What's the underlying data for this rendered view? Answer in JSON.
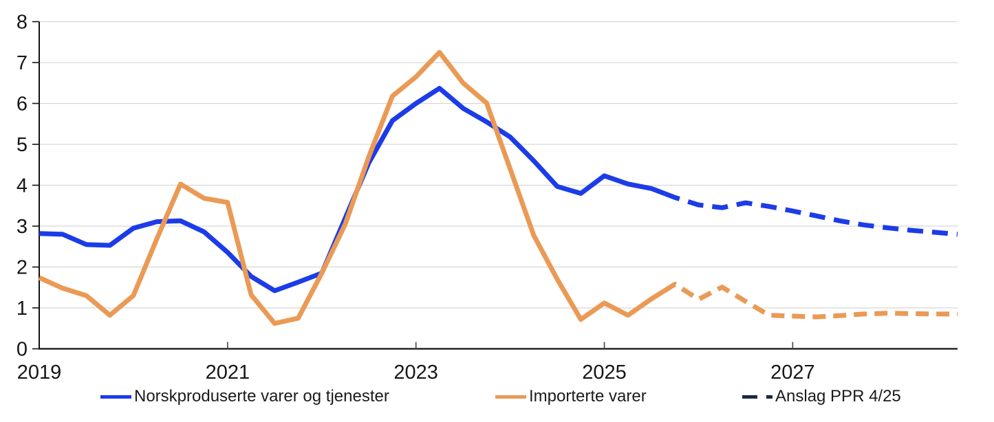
{
  "figure": {
    "background": "#ffffff",
    "title": ""
  },
  "chart_data": {
    "type": "line",
    "title": "",
    "frequency": "quarterly",
    "x_range": [
      "2019 Q1",
      "2028 Q4"
    ],
    "ylim": [
      0,
      8
    ],
    "grid": "horizontal",
    "y_tick_labels": [
      "0",
      "1",
      "2",
      "3",
      "4",
      "5",
      "6",
      "7",
      "8"
    ],
    "x_axis_labels": [
      "2019",
      "2021",
      "2023",
      "2025",
      "2027"
    ],
    "x_label_years": [
      2019,
      2021,
      2023,
      2025,
      2027
    ],
    "x_tick_years": [
      2021,
      2023,
      2025,
      2027
    ],
    "forecast_start": "2025 Q4",
    "last_actual_index": 26,
    "quarters": [
      "2019 Q1",
      "2019 Q2",
      "2019 Q3",
      "2019 Q4",
      "2020 Q1",
      "2020 Q2",
      "2020 Q3",
      "2020 Q4",
      "2021 Q1",
      "2021 Q2",
      "2021 Q3",
      "2021 Q4",
      "2022 Q1",
      "2022 Q2",
      "2022 Q3",
      "2022 Q4",
      "2023 Q1",
      "2023 Q2",
      "2023 Q3",
      "2023 Q4",
      "2024 Q1",
      "2024 Q2",
      "2024 Q3",
      "2024 Q4",
      "2025 Q1",
      "2025 Q2",
      "2025 Q3",
      "2025 Q4",
      "2026 Q1",
      "2026 Q2",
      "2026 Q3",
      "2026 Q4",
      "2027 Q1",
      "2027 Q2",
      "2027 Q3",
      "2027 Q4",
      "2028 Q1",
      "2028 Q2",
      "2028 Q3",
      "2028 Q4"
    ],
    "series": [
      {
        "name": "Norskproduserte varer og tjenester",
        "color": "#1c3ce8",
        "style": "solid, dashed forecast from 2025 Q4",
        "dash": "23 13",
        "values": [
          2.82,
          2.8,
          2.55,
          2.53,
          2.95,
          3.11,
          3.13,
          2.86,
          2.36,
          1.77,
          1.42,
          1.63,
          1.85,
          3.2,
          4.55,
          5.58,
          6.0,
          6.37,
          5.88,
          5.55,
          5.18,
          4.6,
          3.97,
          3.8,
          4.23,
          4.03,
          3.92,
          3.7,
          3.52,
          3.45,
          3.57,
          3.48,
          3.37,
          3.25,
          3.13,
          3.03,
          2.96,
          2.9,
          2.85,
          2.8
        ]
      },
      {
        "name": "Importerte varer",
        "color": "#ea9a55",
        "style": "solid, dashed forecast from 2025 Q4",
        "dash": "19 11",
        "values": [
          1.74,
          1.48,
          1.3,
          0.82,
          1.3,
          2.7,
          4.03,
          3.68,
          3.58,
          1.32,
          0.62,
          0.75,
          1.85,
          3.05,
          4.7,
          6.18,
          6.65,
          7.25,
          6.5,
          6.01,
          4.4,
          2.78,
          1.7,
          0.72,
          1.12,
          0.82,
          1.22,
          1.58,
          1.21,
          1.51,
          1.16,
          0.82,
          0.8,
          0.78,
          0.81,
          0.85,
          0.87,
          0.86,
          0.85,
          0.85
        ]
      }
    ],
    "legend": {
      "position": "bottom",
      "items": [
        {
          "label": "Norskproduserte varer og tjenester",
          "color": "#1c3ce8",
          "swatch": "solid-line"
        },
        {
          "label": "Importerte varer",
          "color": "#ea9a55",
          "swatch": "solid-line"
        },
        {
          "label": "Anslag PPR 4/25",
          "color": "#1a2a47",
          "swatch": "dashed-line"
        }
      ]
    },
    "colors": {
      "gridline": "#d6d6d6",
      "axis": "#111111",
      "tick": "#444444",
      "text": "#161616"
    }
  }
}
